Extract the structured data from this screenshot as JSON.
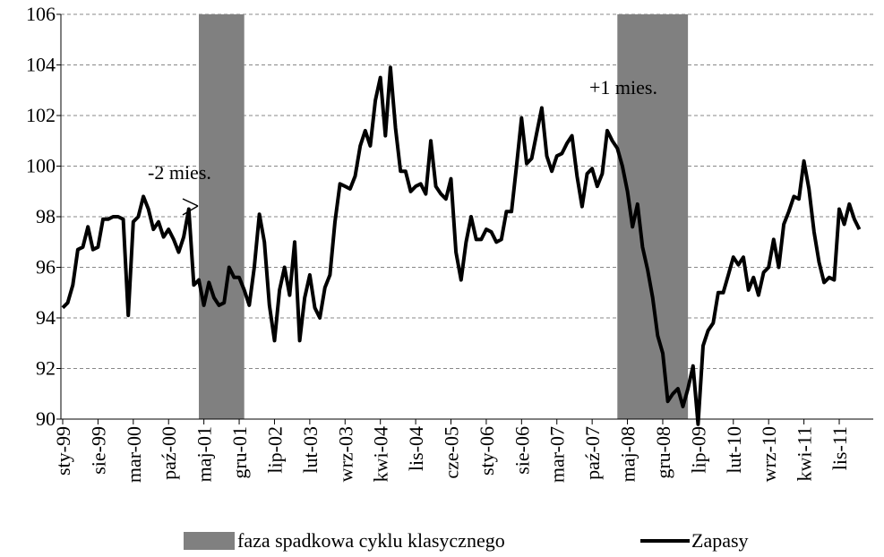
{
  "chart_data": {
    "type": "line",
    "categories": [
      "sty-99",
      null,
      null,
      null,
      null,
      null,
      null,
      "sie-99",
      null,
      null,
      null,
      null,
      null,
      null,
      "mar-00",
      null,
      null,
      null,
      null,
      null,
      null,
      "paź-00",
      null,
      null,
      null,
      null,
      null,
      null,
      "maj-01",
      null,
      null,
      null,
      null,
      null,
      null,
      "gru-01",
      null,
      null,
      null,
      null,
      null,
      null,
      "lip-02",
      null,
      null,
      null,
      null,
      null,
      null,
      "lut-03",
      null,
      null,
      null,
      null,
      null,
      null,
      "wrz-03",
      null,
      null,
      null,
      null,
      null,
      null,
      "kwi-04",
      null,
      null,
      null,
      null,
      null,
      null,
      "lis-04",
      null,
      null,
      null,
      null,
      null,
      null,
      "cze-05",
      null,
      null,
      null,
      null,
      null,
      null,
      "sty-06",
      null,
      null,
      null,
      null,
      null,
      null,
      "sie-06",
      null,
      null,
      null,
      null,
      null,
      null,
      "mar-07",
      null,
      null,
      null,
      null,
      null,
      null,
      "paź-07",
      null,
      null,
      null,
      null,
      null,
      null,
      "maj-08",
      null,
      null,
      null,
      null,
      null,
      null,
      "gru-08",
      null,
      null,
      null,
      null,
      null,
      null,
      "lip-09",
      null,
      null,
      null,
      null,
      null,
      null,
      "lut-10",
      null,
      null,
      null,
      null,
      null,
      null,
      "wrz-10",
      null,
      null,
      null,
      null,
      null,
      null,
      "kwi-11",
      null,
      null,
      null,
      null,
      null,
      null,
      "lis-11",
      null,
      null,
      null,
      null
    ],
    "series": [
      {
        "name": "Zapasy",
        "color": "#000000",
        "values": [
          94.4,
          94.6,
          95.3,
          96.7,
          96.8,
          97.6,
          96.7,
          96.8,
          97.9,
          97.9,
          98.0,
          98.0,
          97.9,
          94.1,
          97.8,
          98.0,
          98.8,
          98.3,
          97.5,
          97.8,
          97.2,
          97.5,
          97.1,
          96.6,
          97.2,
          98.3,
          95.3,
          95.5,
          94.5,
          95.4,
          94.8,
          94.5,
          94.6,
          96.0,
          95.6,
          95.6,
          95.1,
          94.5,
          96.0,
          98.1,
          97.0,
          94.5,
          93.1,
          95.1,
          96.0,
          94.9,
          97.0,
          93.1,
          94.8,
          95.7,
          94.4,
          94.0,
          95.2,
          95.7,
          97.8,
          99.3,
          99.2,
          99.1,
          99.6,
          100.8,
          101.4,
          100.8,
          102.6,
          103.5,
          101.2,
          103.9,
          101.5,
          99.8,
          99.8,
          99.0,
          99.2,
          99.3,
          98.9,
          101.0,
          99.2,
          98.9,
          98.7,
          99.5,
          96.6,
          95.5,
          97.0,
          98.0,
          97.1,
          97.1,
          97.5,
          97.4,
          97.0,
          97.1,
          98.2,
          98.2,
          100.0,
          101.9,
          100.1,
          100.3,
          101.3,
          102.3,
          100.4,
          99.8,
          100.4,
          100.5,
          100.9,
          101.2,
          99.6,
          98.4,
          99.7,
          99.9,
          99.2,
          99.7,
          101.4,
          101.0,
          100.7,
          100.0,
          99.0,
          97.6,
          98.5,
          96.8,
          95.9,
          94.8,
          93.3,
          92.6,
          90.7,
          91.0,
          91.2,
          90.5,
          91.2,
          92.1,
          89.8,
          92.9,
          93.5,
          93.8,
          95.0,
          95.0,
          95.7,
          96.4,
          96.1,
          96.4,
          95.1,
          95.6,
          94.9,
          95.8,
          96.0,
          97.1,
          96.0,
          97.7,
          98.2,
          98.8,
          98.7,
          100.2,
          99.1,
          97.4,
          96.2,
          95.4,
          95.6,
          95.5,
          98.3,
          97.7,
          98.5,
          97.9,
          97.5
        ]
      }
    ],
    "bands": [
      [
        27,
        36
      ],
      [
        110,
        124
      ]
    ],
    "band_name": "faza spadkowa cyklu klasycznego",
    "band_color": "#808080",
    "annotations": [
      "-2 mies.",
      "+1 mies."
    ],
    "ylim": [
      90,
      106
    ],
    "yticks": [
      90,
      92,
      94,
      96,
      98,
      100,
      102,
      104,
      106
    ],
    "grid": true,
    "legend": "bottom"
  }
}
